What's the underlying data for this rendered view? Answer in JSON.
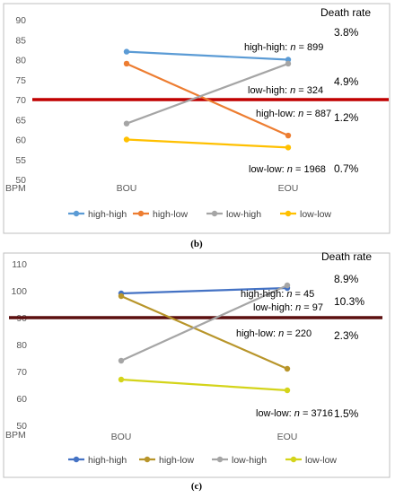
{
  "chart_data": [
    {
      "type": "line",
      "panel_label": "(b)",
      "y_unit_label": "BPM",
      "ylim": [
        50,
        90
      ],
      "yticks": [
        50,
        55,
        60,
        65,
        70,
        75,
        80,
        85,
        90
      ],
      "categories": [
        "BOU",
        "EOU"
      ],
      "threshold": 70,
      "threshold_color": "#c00000",
      "header": "Death rate",
      "series": [
        {
          "name": "high-high",
          "values": [
            82,
            80
          ],
          "color": "#5b9bd5"
        },
        {
          "name": "high-low",
          "values": [
            79,
            61
          ],
          "color": "#ed7d31"
        },
        {
          "name": "low-high",
          "values": [
            64,
            79
          ],
          "color": "#a5a5a5"
        },
        {
          "name": "low-low",
          "values": [
            60,
            58
          ],
          "color": "#ffc000"
        }
      ],
      "annotations": [
        {
          "prefix": "high-high: ",
          "n": "n",
          "suffix": " = 899",
          "rate": "3.8%"
        },
        {
          "prefix": "low-high: ",
          "n": "n",
          "suffix": " = 324",
          "rate": "4.9%"
        },
        {
          "prefix": "high-low: ",
          "n": "n",
          "suffix": " = 887",
          "rate": "1.2%"
        },
        {
          "prefix": "low-low: ",
          "n": "n",
          "suffix": " = 1968",
          "rate": "0.7%"
        }
      ],
      "grid": false,
      "legend_position": "bottom"
    },
    {
      "type": "line",
      "panel_label": "(c)",
      "y_unit_label": "BPM",
      "ylim": [
        50,
        110
      ],
      "yticks": [
        50,
        60,
        70,
        80,
        90,
        100,
        110
      ],
      "categories": [
        "BOU",
        "EOU"
      ],
      "threshold": 90,
      "threshold_color": "#5c0f0f",
      "header": "Death rate",
      "series": [
        {
          "name": "high-high",
          "values": [
            99,
            101
          ],
          "color": "#4472c4"
        },
        {
          "name": "high-low",
          "values": [
            98,
            71
          ],
          "color": "#b8952a"
        },
        {
          "name": "low-high",
          "values": [
            74,
            102
          ],
          "color": "#a5a5a5"
        },
        {
          "name": "low-low",
          "values": [
            67,
            63
          ],
          "color": "#d4d41a"
        }
      ],
      "annotations": [
        {
          "prefix": "high-high: ",
          "n": "n",
          "suffix": " = 45",
          "rate": "8.9%"
        },
        {
          "prefix": "low-high: ",
          "n": "n",
          "suffix": " = 97",
          "rate": "10.3%"
        },
        {
          "prefix": "high-low: ",
          "n": "n",
          "suffix": " = 220",
          "rate": "2.3%"
        },
        {
          "prefix": "low-low: ",
          "n": "n",
          "suffix": " = 3716",
          "rate": "1.5%"
        }
      ],
      "grid": false,
      "legend_position": "bottom"
    }
  ]
}
